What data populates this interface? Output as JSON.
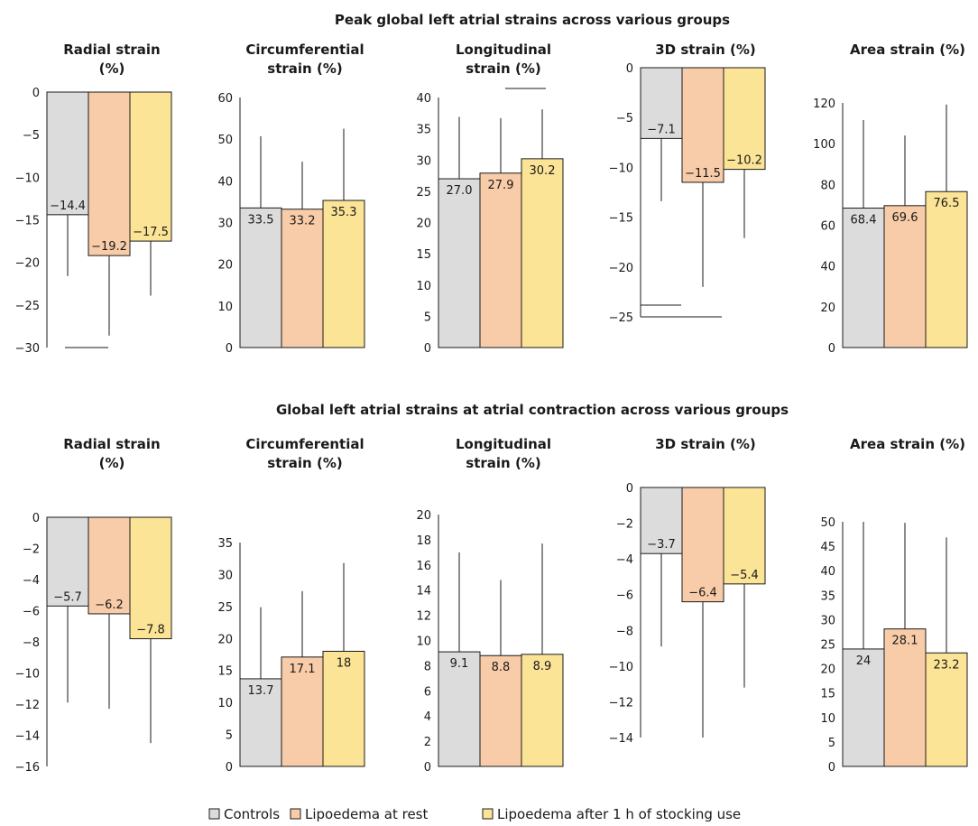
{
  "legend": {
    "items": [
      {
        "label": "Controls",
        "color": "#dcdcdc"
      },
      {
        "label": "Lipoedema at rest",
        "color": "#f8cca8"
      },
      {
        "label": "Lipoedema after 1 h of stocking use",
        "color": "#fce496"
      }
    ]
  },
  "chart_data": [
    {
      "title": "Peak global left atrial strains across various groups",
      "type": "bar",
      "panels": [
        {
          "title_lines": [
            "Radial strain",
            "(%)"
          ],
          "ylim": [
            -30,
            0
          ],
          "yticks": [
            0,
            -5,
            -10,
            -15,
            -20,
            -25,
            -30
          ],
          "series": [
            {
              "name": "Controls",
              "value": -14.4,
              "error_end": -21.6,
              "label": "−14.4"
            },
            {
              "name": "Lipoedema at rest",
              "value": -19.2,
              "error_end": -28.6,
              "label": "−19.2"
            },
            {
              "name": "Lipoedema after 1 h of stocking use",
              "value": -17.5,
              "error_end": -23.9,
              "label": "−17.5"
            }
          ]
        },
        {
          "title_lines": [
            "Circumferential",
            "strain (%)"
          ],
          "ylim": [
            0,
            60
          ],
          "yticks": [
            0,
            10,
            20,
            30,
            40,
            50,
            60
          ],
          "series": [
            {
              "name": "Controls",
              "value": 33.5,
              "error_end": 50.7,
              "label": "33.5"
            },
            {
              "name": "Lipoedema at rest",
              "value": 33.2,
              "error_end": 44.6,
              "label": "33.2"
            },
            {
              "name": "Lipoedema after 1 h of stocking use",
              "value": 35.3,
              "error_end": 52.5,
              "label": "35.3"
            }
          ]
        },
        {
          "title_lines": [
            "Longitudinal",
            "strain (%)"
          ],
          "ylim": [
            0,
            40
          ],
          "yticks": [
            0,
            5,
            10,
            15,
            20,
            25,
            30,
            35,
            40
          ],
          "series": [
            {
              "name": "Controls",
              "value": 27.0,
              "error_end": 36.9,
              "label": "27.0"
            },
            {
              "name": "Lipoedema at rest",
              "value": 27.9,
              "error_end": 36.7,
              "label": "27.9"
            },
            {
              "name": "Lipoedema after 1 h of stocking use",
              "value": 30.2,
              "error_end": 38.1,
              "label": "30.2"
            }
          ]
        },
        {
          "title_lines": [
            "3D strain (%)"
          ],
          "ylim": [
            -25,
            0
          ],
          "yticks": [
            0,
            -5,
            -10,
            -15,
            -20,
            -25
          ],
          "series": [
            {
              "name": "Controls",
              "value": -7.1,
              "error_end": -13.4,
              "label": "−7.1"
            },
            {
              "name": "Lipoedema at rest",
              "value": -11.5,
              "error_end": -22.0,
              "label": "−11.5"
            },
            {
              "name": "Lipoedema after 1 h of stocking use",
              "value": -10.2,
              "error_end": -17.1,
              "label": "−10.2"
            }
          ]
        },
        {
          "title_lines": [
            "Area strain (%)"
          ],
          "ylim": [
            0,
            120
          ],
          "yticks": [
            0,
            20,
            40,
            60,
            80,
            100,
            120
          ],
          "series": [
            {
              "name": "Controls",
              "value": 68.4,
              "error_end": 111.6,
              "label": "68.4"
            },
            {
              "name": "Lipoedema at rest",
              "value": 69.6,
              "error_end": 104.0,
              "label": "69.6"
            },
            {
              "name": "Lipoedema after 1 h of stocking use",
              "value": 76.5,
              "error_end": 119.2,
              "label": "76.5"
            }
          ]
        }
      ]
    },
    {
      "title": "Global left atrial strains at atrial contraction across various groups",
      "type": "bar",
      "panels": [
        {
          "title_lines": [
            "Radial strain",
            "(%)"
          ],
          "ylim": [
            -16,
            0
          ],
          "yticks": [
            0,
            -2,
            -4,
            -6,
            -8,
            -10,
            -12,
            -14,
            -16
          ],
          "series": [
            {
              "name": "Controls",
              "value": -5.7,
              "error_end": -11.9,
              "label": "−5.7"
            },
            {
              "name": "Lipoedema at rest",
              "value": -6.2,
              "error_end": -12.3,
              "label": "−6.2"
            },
            {
              "name": "Lipoedema after 1 h of stocking use",
              "value": -7.8,
              "error_end": -14.5,
              "label": "−7.8"
            }
          ]
        },
        {
          "title_lines": [
            "Circumferential",
            "strain (%)"
          ],
          "ylim": [
            0,
            35
          ],
          "yticks": [
            0,
            5,
            10,
            15,
            20,
            25,
            30,
            35
          ],
          "series": [
            {
              "name": "Controls",
              "value": 13.7,
              "error_end": 24.9,
              "label": "13.7"
            },
            {
              "name": "Lipoedema at rest",
              "value": 17.1,
              "error_end": 27.4,
              "label": "17.1"
            },
            {
              "name": "Lipoedema after 1 h of stocking use",
              "value": 18.0,
              "error_end": 31.8,
              "label": "18"
            }
          ]
        },
        {
          "title_lines": [
            "Longitudinal",
            "strain (%)"
          ],
          "ylim": [
            0,
            20
          ],
          "yticks": [
            0,
            2,
            4,
            6,
            8,
            10,
            12,
            14,
            16,
            18,
            20
          ],
          "series": [
            {
              "name": "Controls",
              "value": 9.1,
              "error_end": 17.0,
              "label": "9.1"
            },
            {
              "name": "Lipoedema at rest",
              "value": 8.8,
              "error_end": 14.8,
              "label": "8.8"
            },
            {
              "name": "Lipoedema after 1 h of stocking use",
              "value": 8.9,
              "error_end": 17.7,
              "label": "8.9"
            }
          ]
        },
        {
          "title_lines": [
            "3D strain (%)"
          ],
          "ylim": [
            -14,
            0
          ],
          "yticks": [
            0,
            -2,
            -4,
            -6,
            -8,
            -10,
            -12,
            -14
          ],
          "series": [
            {
              "name": "Controls",
              "value": -3.7,
              "error_end": -8.9,
              "label": "−3.7"
            },
            {
              "name": "Lipoedema at rest",
              "value": -6.4,
              "error_end": -14.0,
              "label": "−6.4"
            },
            {
              "name": "Lipoedema after 1 h of stocking use",
              "value": -5.4,
              "error_end": -11.2,
              "label": "−5.4"
            }
          ]
        },
        {
          "title_lines": [
            "Area strain (%)"
          ],
          "ylim": [
            0,
            50
          ],
          "yticks": [
            0,
            5,
            10,
            15,
            20,
            25,
            30,
            35,
            40,
            45,
            50
          ],
          "series": [
            {
              "name": "Controls",
              "value": 24.0,
              "error_end": 50.0,
              "label": "24"
            },
            {
              "name": "Lipoedema at rest",
              "value": 28.1,
              "error_end": 49.8,
              "label": "28.1"
            },
            {
              "name": "Lipoedema after 1 h of stocking use",
              "value": 23.2,
              "error_end": 46.8,
              "label": "23.2"
            }
          ]
        }
      ]
    }
  ]
}
